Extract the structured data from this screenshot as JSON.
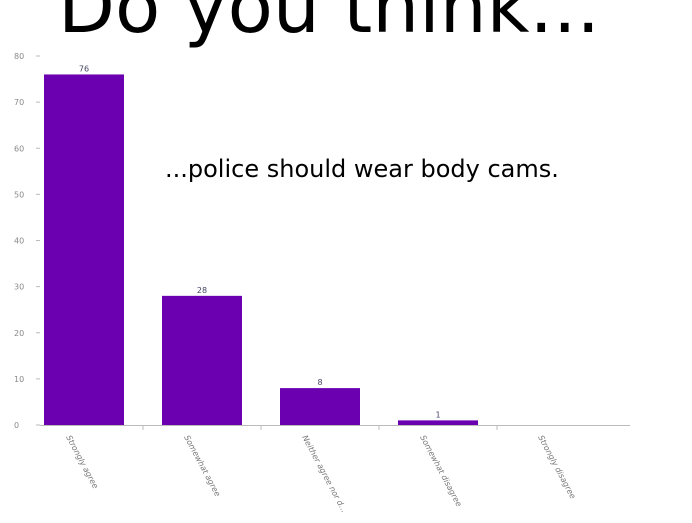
{
  "slide": {
    "title": "Do you think...",
    "subtitle": "...police should wear body cams."
  },
  "chart_data": {
    "type": "bar",
    "categories": [
      "Strongly agree",
      "Somewhat agree",
      "Neither agree nor d...",
      "Somewhat disagree",
      "Strongly disagree"
    ],
    "values": [
      76,
      28,
      8,
      1,
      0
    ],
    "data_labels": [
      "76",
      "28",
      "8",
      "1",
      ""
    ],
    "ylim": [
      0,
      80
    ],
    "yticks": [
      0,
      10,
      20,
      30,
      40,
      50,
      60,
      70,
      80
    ],
    "grid": false,
    "bar_color": "#6a00b0",
    "axis_color": "#bbbbbb"
  }
}
